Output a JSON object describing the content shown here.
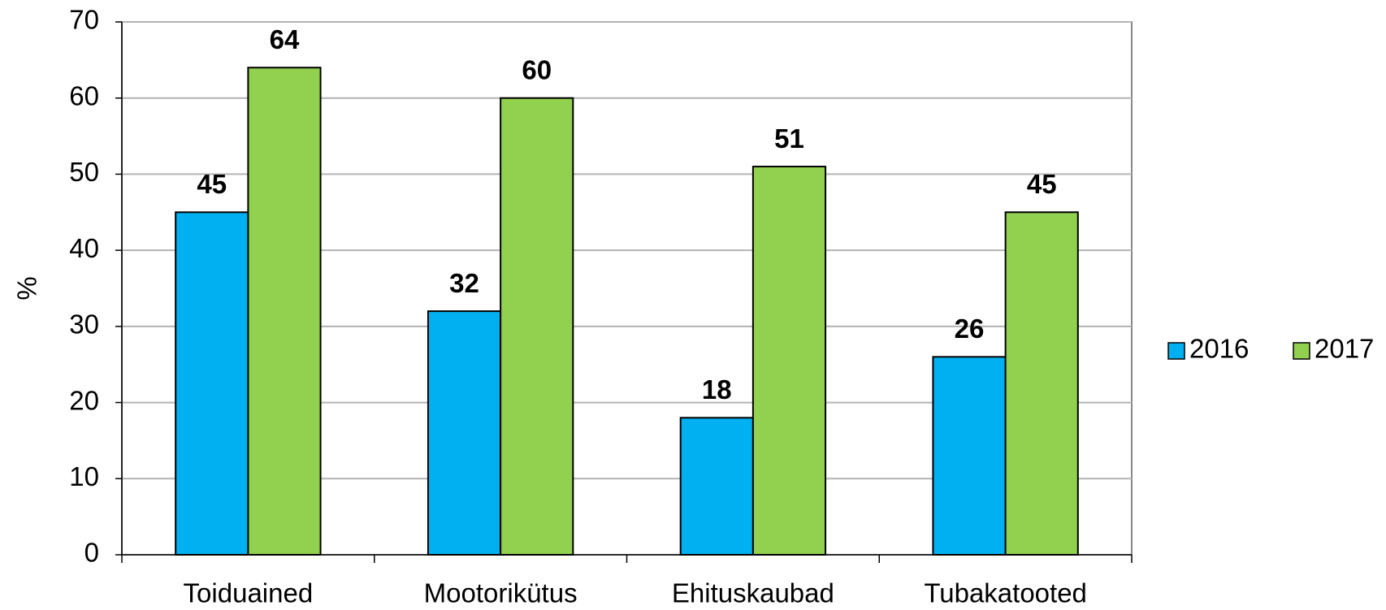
{
  "chart_data": {
    "type": "bar",
    "categories": [
      "Toiduained",
      "Mootorikütus",
      "Ehituskaubad",
      "Tubakatooted"
    ],
    "series": [
      {
        "name": "2016",
        "color": "#00b0f0",
        "values": [
          45,
          32,
          18,
          26
        ]
      },
      {
        "name": "2017",
        "color": "#92d050",
        "values": [
          64,
          60,
          51,
          45
        ]
      }
    ],
    "y_label": "%",
    "ylim": [
      0,
      70
    ],
    "yticks": [
      0,
      10,
      20,
      30,
      40,
      50,
      60,
      70
    ],
    "grid": true,
    "legend": "right"
  }
}
